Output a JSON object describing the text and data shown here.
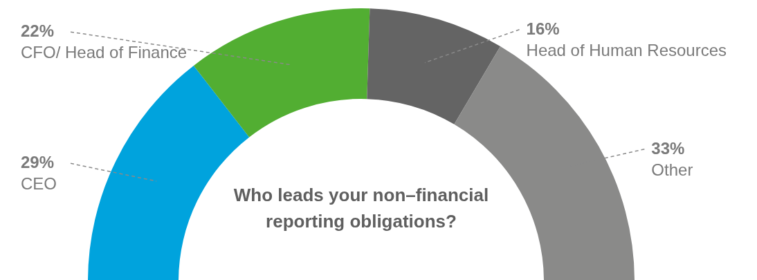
{
  "chart_data": {
    "type": "donut",
    "title": "Who leads your non–financial reporting obligations?",
    "categories": [
      "CEO",
      "CFO/ Head of Finance",
      "Head of Human Resources",
      "Other"
    ],
    "values": [
      29,
      22,
      16,
      33
    ],
    "colors": [
      "#00a3dd",
      "#52ae32",
      "#646464",
      "#8a8a89"
    ],
    "value_labels": [
      "29%",
      "22%",
      "16%",
      "33%"
    ]
  }
}
